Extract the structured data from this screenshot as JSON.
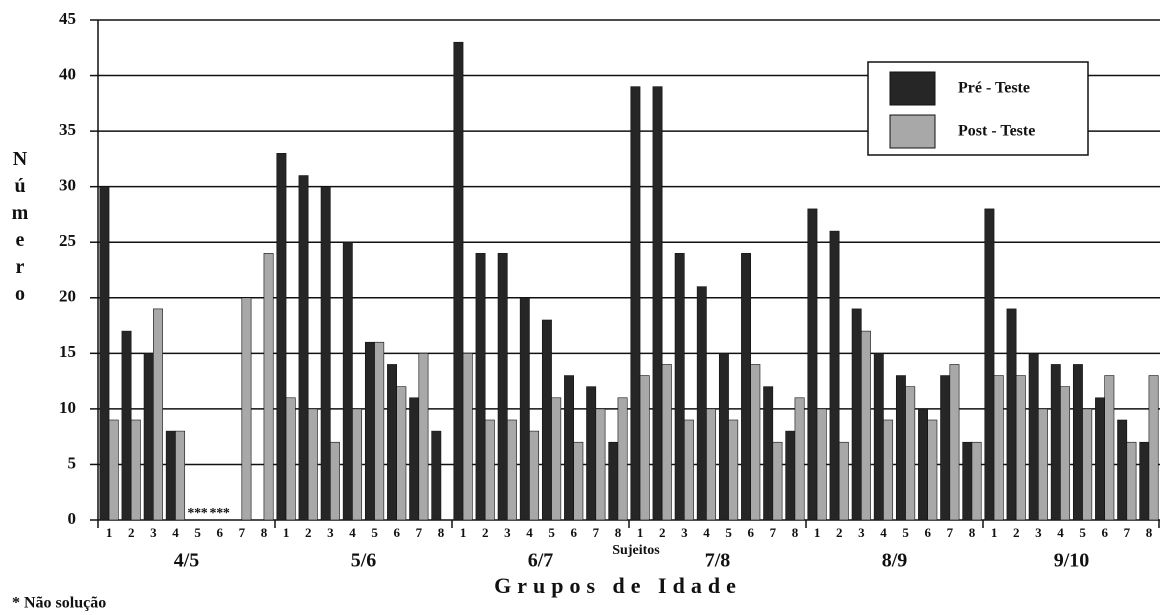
{
  "chart_data": {
    "type": "bar",
    "y_label": "Número",
    "x_label": "Grupos de Idade",
    "x_sublabel": "Sujeitos",
    "footnote": "* Não solução",
    "no_solution_marker": "*",
    "groups": [
      "4/5",
      "5/6",
      "6/7",
      "7/8",
      "8/9",
      "9/10"
    ],
    "categories": [
      "1",
      "2",
      "3",
      "4",
      "5",
      "6",
      "7",
      "8",
      "1",
      "2",
      "3",
      "4",
      "5",
      "6",
      "7",
      "8",
      "1",
      "2",
      "3",
      "4",
      "5",
      "6",
      "7",
      "8",
      "1",
      "2",
      "3",
      "4",
      "5",
      "6",
      "7",
      "8",
      "1",
      "2",
      "3",
      "4",
      "5",
      "6",
      "7",
      "8",
      "1",
      "2",
      "3",
      "4",
      "5",
      "6",
      "7",
      "8"
    ],
    "series": [
      {
        "name": "Pré - Teste",
        "color": "#262626",
        "values": [
          30,
          17,
          15,
          8,
          null,
          null,
          null,
          null,
          33,
          31,
          30,
          25,
          16,
          14,
          11,
          8,
          43,
          24,
          24,
          20,
          18,
          13,
          12,
          7,
          39,
          39,
          24,
          21,
          15,
          24,
          12,
          8,
          28,
          26,
          19,
          15,
          13,
          10,
          13,
          7,
          28,
          19,
          15,
          14,
          14,
          11,
          9,
          7
        ]
      },
      {
        "name": "Post - Teste",
        "color": "#a8a8a8",
        "values": [
          9,
          9,
          19,
          8,
          null,
          null,
          20,
          24,
          11,
          10,
          7,
          10,
          16,
          12,
          15,
          null,
          15,
          9,
          9,
          8,
          11,
          7,
          10,
          11,
          13,
          14,
          9,
          10,
          9,
          14,
          7,
          11,
          10,
          7,
          17,
          9,
          12,
          9,
          14,
          7,
          13,
          13,
          10,
          12,
          10,
          13,
          7,
          13
        ]
      }
    ],
    "ylim": [
      0,
      45
    ],
    "yticks": [
      0,
      5,
      10,
      15,
      20,
      25,
      30,
      35,
      40,
      45
    ],
    "grid": true,
    "legend": "upper right"
  }
}
